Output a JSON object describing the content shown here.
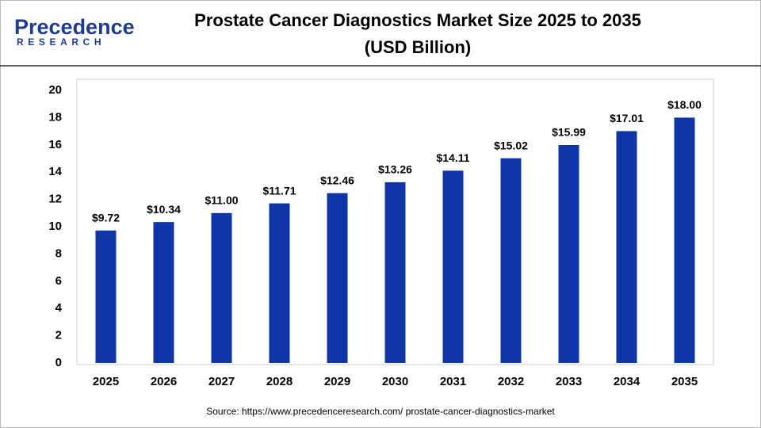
{
  "logo": {
    "name": "Precedence",
    "tagline": "RESEARCH"
  },
  "chart_data": {
    "type": "bar",
    "title": "Prostate Cancer Diagnostics Market Size 2025 to 2035",
    "subtitle": "(USD Billion)",
    "categories": [
      "2025",
      "2026",
      "2027",
      "2028",
      "2029",
      "2030",
      "2031",
      "2032",
      "2033",
      "2034",
      "2035"
    ],
    "values": [
      9.72,
      10.34,
      11.0,
      11.71,
      12.46,
      13.26,
      14.11,
      15.02,
      15.99,
      17.01,
      18.0
    ],
    "value_labels": [
      "$9.72",
      "$10.34",
      "$11.00",
      "$11.71",
      "$12.46",
      "$13.26",
      "$14.11",
      "$15.02",
      "$15.99",
      "$17.01",
      "$18.00"
    ],
    "color": "#0f36a9",
    "ylim": [
      0,
      20
    ],
    "yticks": [
      0,
      2,
      4,
      6,
      8,
      10,
      12,
      14,
      16,
      18,
      20
    ],
    "grid": false,
    "source": "Source: https://www.precedenceresearch.com/ prostate-cancer-diagnostics-market"
  }
}
